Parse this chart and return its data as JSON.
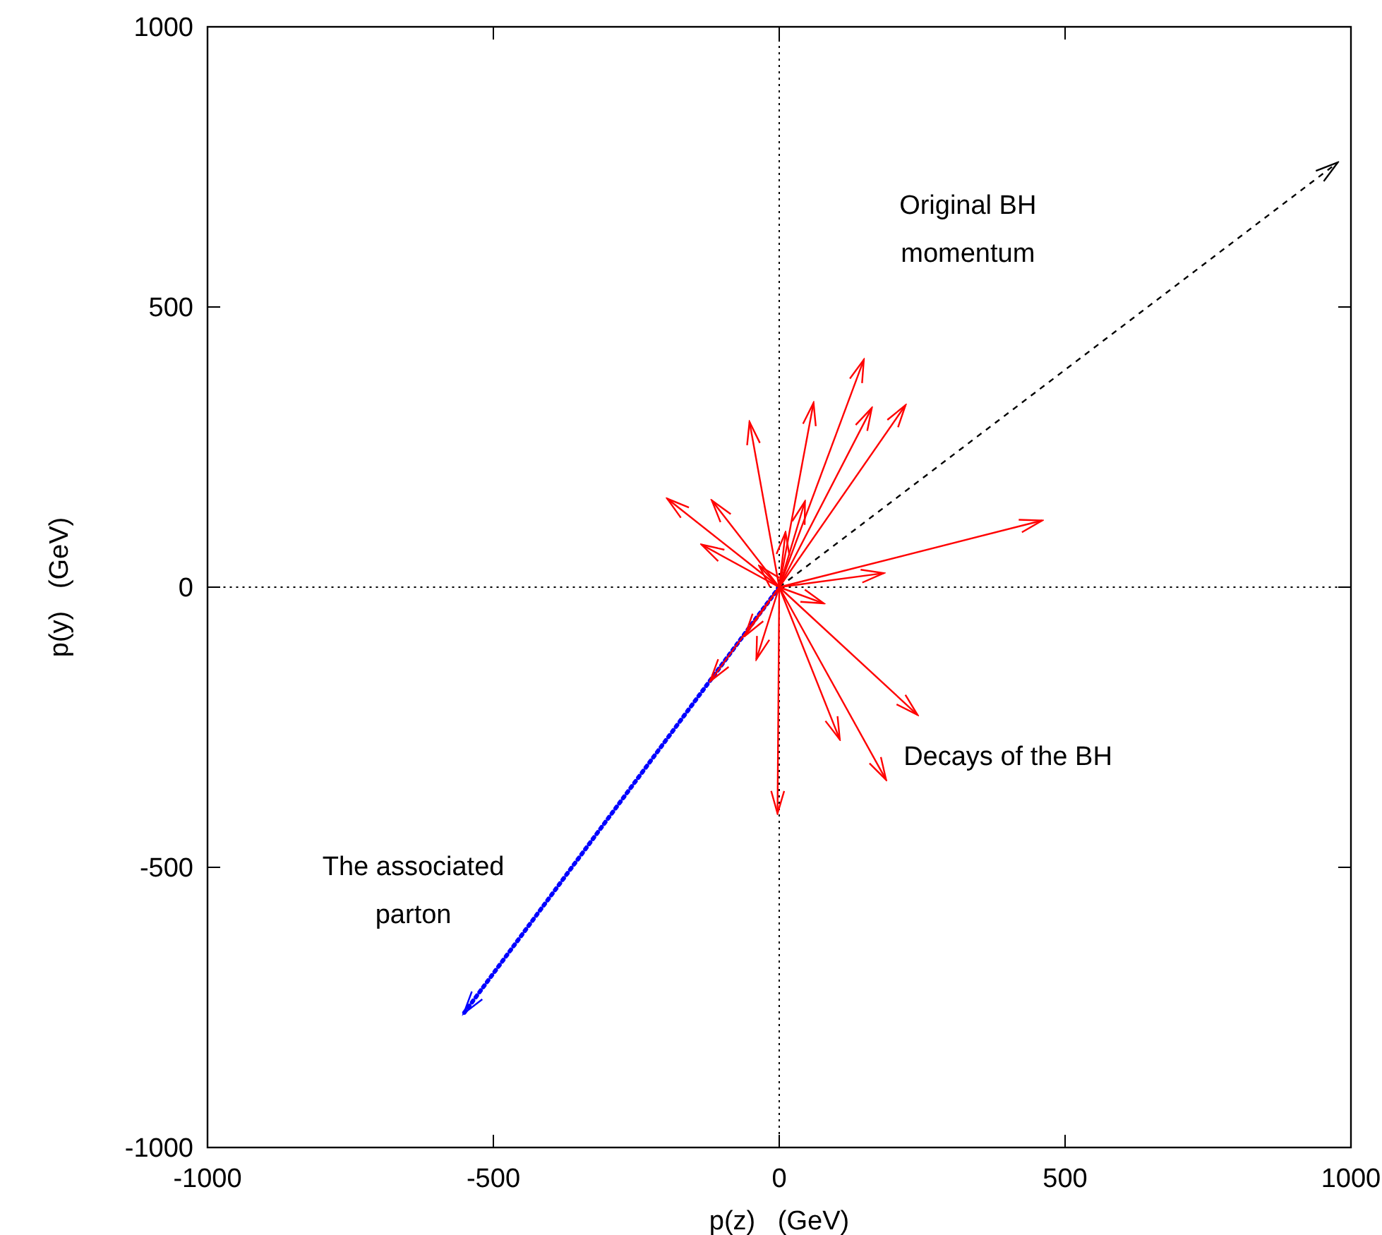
{
  "chart_data": {
    "type": "line",
    "xlabel": "p(z)   (GeV)",
    "ylabel": "p(y)   (GeV)",
    "xlim": [
      -1000,
      1000
    ],
    "ylim": [
      -1000,
      1000
    ],
    "xticks": [
      -1000,
      -500,
      0,
      500,
      1000
    ],
    "yticks": [
      -1000,
      -500,
      0,
      500,
      1000
    ],
    "ref_lines": [
      {
        "axis": "x",
        "value": 0,
        "line_style": "dotted",
        "color": "#000000"
      },
      {
        "axis": "y",
        "value": 0,
        "line_style": "dotted",
        "color": "#000000"
      }
    ],
    "series": [
      {
        "color": "#000000",
        "line_style": "dashed",
        "x": [
          0,
          977
        ],
        "values": [
          0,
          758
        ]
      },
      {
        "color": "#0000ff",
        "line_style": "dotted",
        "x": [
          0,
          -552
        ],
        "values": [
          0,
          -761
        ]
      },
      {
        "color": "#ff0000",
        "x": [
          0,
          148
        ],
        "values": [
          0,
          406
        ]
      },
      {
        "color": "#ff0000",
        "x": [
          0,
          221
        ],
        "values": [
          0,
          325
        ]
      },
      {
        "color": "#ff0000",
        "x": [
          0,
          162
        ],
        "values": [
          0,
          320
        ]
      },
      {
        "color": "#ff0000",
        "x": [
          0,
          60
        ],
        "values": [
          0,
          329
        ]
      },
      {
        "color": "#ff0000",
        "x": [
          0,
          -52
        ],
        "values": [
          0,
          295
        ]
      },
      {
        "color": "#ff0000",
        "x": [
          0,
          -196
        ],
        "values": [
          0,
          158
        ]
      },
      {
        "color": "#ff0000",
        "x": [
          0,
          -118
        ],
        "values": [
          0,
          155
        ]
      },
      {
        "color": "#ff0000",
        "x": [
          0,
          -136
        ],
        "values": [
          0,
          76
        ]
      },
      {
        "color": "#ff0000",
        "x": [
          0,
          -35
        ],
        "values": [
          0,
          38
        ]
      },
      {
        "color": "#ff0000",
        "x": [
          0,
          460
        ],
        "values": [
          0,
          119
        ]
      },
      {
        "color": "#ff0000",
        "x": [
          0,
          183
        ],
        "values": [
          0,
          25
        ]
      },
      {
        "color": "#ff0000",
        "x": [
          0,
          78
        ],
        "values": [
          0,
          -29
        ]
      },
      {
        "color": "#ff0000",
        "x": [
          0,
          242
        ],
        "values": [
          0,
          -228
        ]
      },
      {
        "color": "#ff0000",
        "x": [
          0,
          106
        ],
        "values": [
          0,
          -272
        ]
      },
      {
        "color": "#ff0000",
        "x": [
          0,
          187
        ],
        "values": [
          0,
          -344
        ]
      },
      {
        "color": "#ff0000",
        "x": [
          0,
          -3
        ],
        "values": [
          0,
          -404
        ]
      },
      {
        "color": "#ff0000",
        "x": [
          0,
          -40
        ],
        "values": [
          0,
          -129
        ]
      },
      {
        "color": "#ff0000",
        "x": [
          0,
          -121
        ],
        "values": [
          0,
          -168
        ]
      },
      {
        "color": "#ff0000",
        "x": [
          0,
          -60
        ],
        "values": [
          0,
          -87
        ]
      },
      {
        "color": "#ff0000",
        "x": [
          0,
          11
        ],
        "values": [
          0,
          98
        ]
      },
      {
        "color": "#ff0000",
        "x": [
          0,
          45
        ],
        "values": [
          0,
          153
        ]
      }
    ],
    "annotations": [
      "Original BH\nmomentum",
      "Decays of the BH",
      "The associated\nparton"
    ]
  }
}
